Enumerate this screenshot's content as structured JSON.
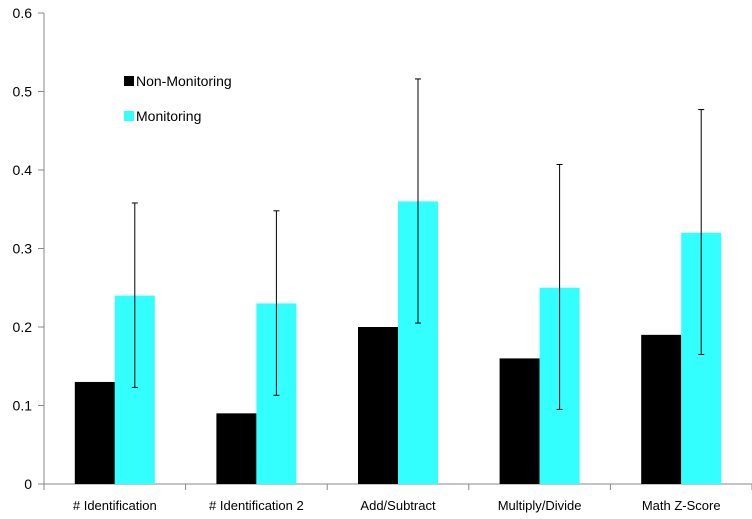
{
  "chart_data": {
    "type": "bar",
    "title": "",
    "xlabel": "",
    "ylabel": "",
    "ylim": [
      0,
      0.6
    ],
    "yticks": [
      0,
      0.1,
      0.2,
      0.3,
      0.4,
      0.5,
      0.6
    ],
    "ytick_labels": [
      "0",
      "0.1",
      "0.2",
      "0.3",
      "0.4",
      "0.5",
      "0.6"
    ],
    "grid": false,
    "legend_position": "top-left",
    "categories": [
      "# Identification",
      "# Identification 2",
      "Add/Subtract",
      "Multiply/Divide",
      "Math Z-Score"
    ],
    "series": [
      {
        "name": "Non-Monitoring",
        "color": "#000000",
        "values": [
          0.13,
          0.09,
          0.2,
          0.16,
          0.19
        ]
      },
      {
        "name": "Monitoring",
        "color": "#33FFFF",
        "values": [
          0.24,
          0.23,
          0.36,
          0.25,
          0.32
        ],
        "error_low": [
          0.123,
          0.113,
          0.205,
          0.095,
          0.165
        ],
        "error_high": [
          0.358,
          0.348,
          0.516,
          0.407,
          0.477
        ]
      }
    ]
  }
}
